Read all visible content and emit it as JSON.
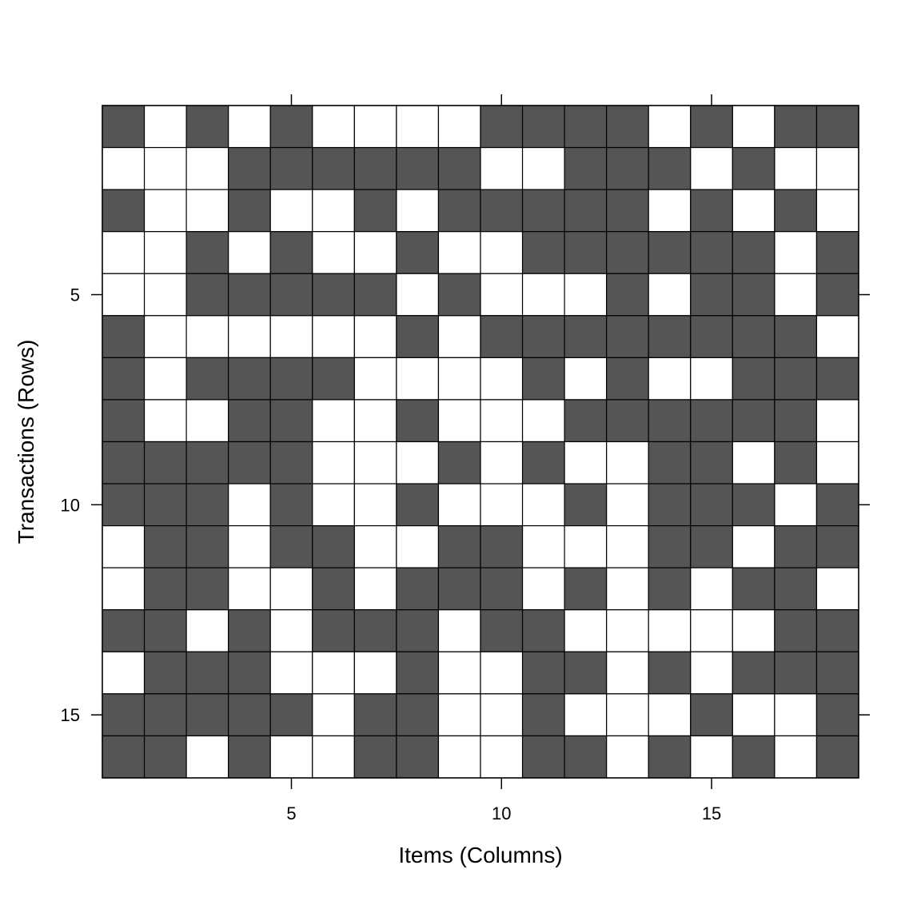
{
  "chart_data": {
    "type": "heatmap",
    "title": "",
    "xlabel": "Items (Columns)",
    "ylabel": "Transactions (Rows)",
    "x_ticks": [
      "5",
      "10",
      "15"
    ],
    "x_tick_values": [
      5,
      10,
      15
    ],
    "y_ticks": [
      "5",
      "10",
      "15"
    ],
    "y_tick_values": [
      5,
      10,
      15
    ],
    "n_rows": 16,
    "n_cols": 18,
    "xlim": [
      0.5,
      18.5
    ],
    "ylim": [
      16.5,
      0.5
    ],
    "colors": {
      "filled": "#555555",
      "empty": "#ffffff",
      "border": "#000000"
    },
    "matrix": [
      [
        1,
        0,
        1,
        0,
        1,
        0,
        0,
        0,
        0,
        1,
        1,
        1,
        1,
        0,
        1,
        0,
        1,
        1
      ],
      [
        0,
        0,
        0,
        1,
        1,
        1,
        1,
        1,
        1,
        0,
        0,
        1,
        1,
        1,
        0,
        1,
        0,
        0
      ],
      [
        1,
        0,
        0,
        1,
        0,
        0,
        1,
        0,
        1,
        1,
        1,
        1,
        1,
        0,
        1,
        0,
        1,
        0
      ],
      [
        0,
        0,
        1,
        0,
        1,
        0,
        0,
        1,
        0,
        0,
        1,
        1,
        1,
        1,
        1,
        1,
        0,
        1
      ],
      [
        0,
        0,
        1,
        1,
        1,
        1,
        1,
        0,
        1,
        0,
        0,
        0,
        1,
        0,
        1,
        1,
        0,
        1
      ],
      [
        1,
        0,
        0,
        0,
        0,
        0,
        0,
        1,
        0,
        1,
        1,
        1,
        1,
        1,
        1,
        1,
        1,
        0
      ],
      [
        1,
        0,
        1,
        1,
        1,
        1,
        0,
        0,
        0,
        0,
        1,
        0,
        1,
        0,
        0,
        1,
        1,
        1
      ],
      [
        1,
        0,
        0,
        1,
        1,
        0,
        0,
        1,
        0,
        0,
        0,
        1,
        1,
        1,
        1,
        1,
        1,
        0
      ],
      [
        1,
        1,
        1,
        1,
        1,
        0,
        0,
        0,
        1,
        0,
        1,
        0,
        0,
        1,
        1,
        0,
        1,
        0
      ],
      [
        1,
        1,
        1,
        0,
        1,
        0,
        0,
        1,
        0,
        0,
        0,
        1,
        0,
        1,
        1,
        1,
        0,
        1
      ],
      [
        0,
        1,
        1,
        0,
        1,
        1,
        0,
        0,
        1,
        1,
        0,
        0,
        0,
        1,
        1,
        0,
        1,
        1
      ],
      [
        0,
        1,
        1,
        0,
        0,
        1,
        0,
        1,
        1,
        1,
        0,
        1,
        0,
        1,
        0,
        1,
        1,
        0
      ],
      [
        1,
        1,
        0,
        1,
        0,
        1,
        1,
        1,
        0,
        1,
        1,
        0,
        0,
        0,
        0,
        0,
        1,
        1
      ],
      [
        0,
        1,
        1,
        1,
        0,
        0,
        0,
        1,
        0,
        0,
        1,
        1,
        0,
        1,
        0,
        1,
        1,
        1
      ],
      [
        1,
        1,
        1,
        1,
        1,
        0,
        1,
        1,
        0,
        0,
        1,
        0,
        0,
        0,
        1,
        0,
        0,
        1
      ],
      [
        1,
        1,
        0,
        1,
        0,
        0,
        1,
        1,
        0,
        0,
        1,
        1,
        0,
        1,
        0,
        1,
        0,
        1
      ]
    ]
  }
}
